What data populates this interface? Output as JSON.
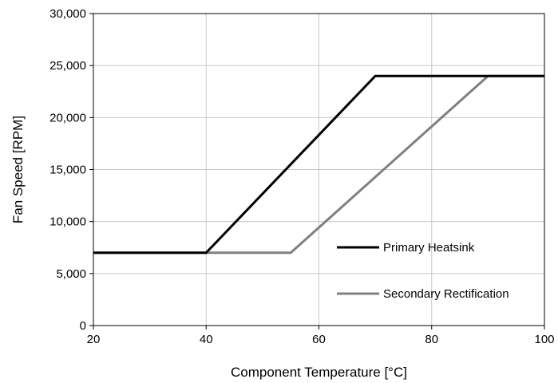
{
  "chart_data": {
    "type": "line",
    "xlabel": "Component Temperature [°C]",
    "ylabel": "Fan Speed [RPM]",
    "xlim": [
      20,
      100
    ],
    "ylim": [
      0,
      30000
    ],
    "x_ticks": [
      20,
      40,
      60,
      80,
      100
    ],
    "y_ticks": [
      0,
      5000,
      10000,
      15000,
      20000,
      25000,
      30000
    ],
    "x_tick_labels": [
      "20",
      "40",
      "60",
      "80",
      "100"
    ],
    "y_tick_labels": [
      "0",
      "5,000",
      "10,000",
      "15,000",
      "20,000",
      "25,000",
      "30,000"
    ],
    "grid": true,
    "legend_position": "lower-right",
    "series": [
      {
        "name": "Primary Heatsink",
        "color": "#000000",
        "x": [
          20,
          40,
          70,
          100
        ],
        "y": [
          7000,
          7000,
          24000,
          24000
        ]
      },
      {
        "name": "Secondary Rectification",
        "color": "#808080",
        "x": [
          20,
          55,
          90,
          100
        ],
        "y": [
          7000,
          7000,
          24000,
          24000
        ]
      }
    ]
  }
}
